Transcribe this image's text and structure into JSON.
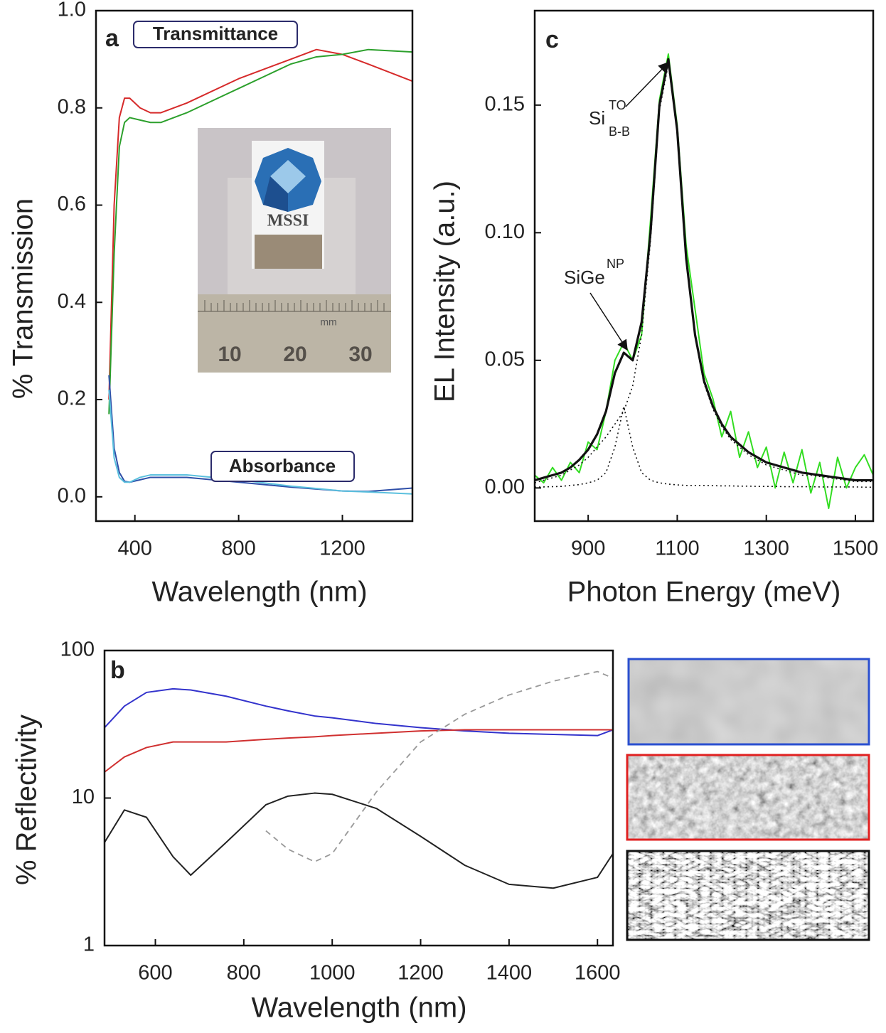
{
  "inset_photo": {
    "logo_text": "MSSI",
    "unit": "mm",
    "ruler_labels": [
      "10",
      "20",
      "30"
    ]
  },
  "chart_data": [
    {
      "type": "line",
      "panel_label": "a",
      "y_label": "% Transmission",
      "x_label": "Wavelength (nm)",
      "annotations": [
        "Transmittance",
        "Absorbance"
      ],
      "x": [
        300,
        320,
        340,
        360,
        380,
        420,
        460,
        500,
        600,
        800,
        1000,
        1100,
        1200,
        1300,
        1470
      ],
      "series": [
        {
          "color": "#d62a2a",
          "style": "solid",
          "values": [
            0.2,
            0.6,
            0.78,
            0.82,
            0.82,
            0.8,
            0.79,
            0.79,
            0.81,
            0.86,
            0.9,
            0.92,
            0.91,
            0.89,
            0.855
          ]
        },
        {
          "color": "#2ca02c",
          "style": "solid",
          "values": [
            0.17,
            0.5,
            0.72,
            0.77,
            0.78,
            0.775,
            0.77,
            0.77,
            0.79,
            0.84,
            0.89,
            0.905,
            0.91,
            0.92,
            0.915
          ]
        },
        {
          "color": "#2f4fa8",
          "style": "solid",
          "values": [
            0.25,
            0.1,
            0.05,
            0.032,
            0.03,
            0.035,
            0.04,
            0.04,
            0.04,
            0.03,
            0.02,
            0.016,
            0.012,
            0.011,
            0.018
          ]
        },
        {
          "color": "#5bc0de",
          "style": "solid",
          "values": [
            0.22,
            0.08,
            0.04,
            0.03,
            0.03,
            0.04,
            0.045,
            0.045,
            0.045,
            0.035,
            0.022,
            0.017,
            0.012,
            0.01,
            0.006
          ]
        }
      ],
      "xlim": [
        250,
        1470
      ],
      "ylim": [
        -0.05,
        1.0
      ],
      "y_scale": "linear",
      "xticks": [
        400,
        800,
        1200
      ],
      "yticks": [
        {
          "value": 0,
          "label": "0.0"
        },
        0.2,
        0.4,
        0.6,
        0.8,
        {
          "value": 1,
          "label": "1.0"
        }
      ]
    },
    {
      "type": "line",
      "panel_label": "b",
      "y_label": "% Reflectivity",
      "x_label": "Wavelength (nm)",
      "x": [
        485,
        530,
        580,
        640,
        680,
        760,
        850,
        900,
        960,
        1000,
        1100,
        1200,
        1300,
        1400,
        1500,
        1600,
        1635
      ],
      "series": [
        {
          "color": "#3333cc",
          "style": "solid",
          "values": [
            30,
            42,
            52,
            55,
            54,
            49,
            42,
            39,
            36,
            35,
            32,
            30,
            28.5,
            27.5,
            27,
            26.5,
            29
          ]
        },
        {
          "color": "#d03030",
          "style": "solid",
          "values": [
            15,
            19,
            22,
            24,
            24,
            24,
            25,
            25.5,
            26,
            26.5,
            27.5,
            28.5,
            29,
            29,
            29,
            29,
            29
          ]
        },
        {
          "color": "#222222",
          "style": "solid",
          "values": [
            5,
            8.3,
            7.4,
            4.0,
            3.0,
            5.0,
            9,
            10.3,
            10.8,
            10.6,
            8.5,
            5.5,
            3.5,
            2.6,
            2.45,
            2.9,
            4.2
          ]
        },
        {
          "color": "#999999",
          "style": "dashed",
          "values": [
            null,
            null,
            null,
            null,
            null,
            null,
            6,
            4.5,
            3.7,
            4.2,
            11,
            24,
            37,
            50,
            62,
            72,
            65
          ]
        }
      ],
      "xlim": [
        485,
        1635
      ],
      "ylim": [
        1,
        100
      ],
      "y_scale": "log",
      "xticks": [
        600,
        800,
        1000,
        1200,
        1400,
        1600
      ],
      "yticks": [
        1,
        10,
        100
      ]
    },
    {
      "type": "line",
      "panel_label": "c",
      "y_label": "EL Intensity (a.u.)",
      "x_label": "Photon Energy (meV)",
      "annotations": [
        {
          "text": "Si",
          "superscript": "TO",
          "subscript": "B-B"
        },
        {
          "text": "SiGe",
          "superscript": "NP"
        }
      ],
      "x": [
        780,
        800,
        820,
        840,
        860,
        880,
        900,
        920,
        940,
        960,
        980,
        1000,
        1020,
        1040,
        1060,
        1080,
        1100,
        1120,
        1140,
        1160,
        1180,
        1200,
        1220,
        1240,
        1260,
        1280,
        1300,
        1320,
        1340,
        1360,
        1380,
        1400,
        1420,
        1440,
        1460,
        1480,
        1500,
        1520,
        1540
      ],
      "series": [
        {
          "color": "#33dd22",
          "style": "solid",
          "values": [
            0.005,
            0.002,
            0.008,
            0.003,
            0.01,
            0.006,
            0.018,
            0.015,
            0.03,
            0.05,
            0.057,
            0.05,
            0.06,
            0.105,
            0.152,
            0.17,
            0.142,
            0.095,
            0.07,
            0.045,
            0.035,
            0.02,
            0.03,
            0.012,
            0.022,
            0.008,
            0.016,
            0,
            0.014,
            0.002,
            0.015,
            -0.002,
            0.01,
            -0.008,
            0.012,
            0,
            0.008,
            0.013,
            0.005
          ]
        },
        {
          "color": "#111111",
          "style": "thick",
          "values": [
            0.003,
            0.004,
            0.005,
            0.006,
            0.008,
            0.011,
            0.015,
            0.021,
            0.03,
            0.045,
            0.053,
            0.05,
            0.065,
            0.1,
            0.15,
            0.168,
            0.14,
            0.09,
            0.06,
            0.042,
            0.032,
            0.025,
            0.02,
            0.017,
            0.014,
            0.012,
            0.01,
            0.009,
            0.008,
            0.007,
            0.006,
            0.0055,
            0.005,
            0.0045,
            0.004,
            0.0035,
            0.003,
            0.003,
            0.003
          ]
        },
        {
          "color": "#111111",
          "style": "dotted",
          "values": [
            0.0003,
            0.0004,
            0.0005,
            0.0006,
            0.001,
            0.0013,
            0.002,
            0.003,
            0.006,
            0.016,
            0.032,
            0.016,
            0.006,
            0.003,
            0.002,
            0.0015,
            0.0012,
            0.001,
            0.001,
            0.001,
            0.0009,
            0.0008,
            0.0008,
            0.0007,
            0.0007,
            0.0006,
            0.0006,
            0.0006,
            0.0005,
            0.0005,
            0.0005,
            0.0005,
            0.0004,
            0.0004,
            0.0004,
            0.0004,
            0.0004,
            0.0003,
            0.0003
          ]
        },
        {
          "color": "#111111",
          "style": "dotted",
          "values": [
            0.002,
            0.003,
            0.004,
            0.005,
            0.007,
            0.009,
            0.012,
            0.016,
            0.02,
            0.025,
            0.03,
            0.04,
            0.06,
            0.097,
            0.148,
            0.166,
            0.139,
            0.089,
            0.059,
            0.041,
            0.031,
            0.024,
            0.019,
            0.016,
            0.013,
            0.011,
            0.009,
            0.008,
            0.007,
            0.006,
            0.005,
            0.005,
            0.0045,
            0.004,
            0.0035,
            0.003,
            0.0025,
            0.0025,
            0.0025
          ]
        }
      ],
      "xlim": [
        780,
        1540
      ],
      "ylim": [
        -0.013,
        0.187
      ],
      "y_scale": "linear",
      "xticks": [
        900,
        1100,
        1300,
        1500
      ],
      "yticks": [
        {
          "value": 0,
          "label": "0.00"
        },
        {
          "value": 0.05,
          "label": "0.05"
        },
        {
          "value": 0.1,
          "label": "0.10"
        },
        {
          "value": 0.15,
          "label": "0.15"
        }
      ]
    }
  ]
}
